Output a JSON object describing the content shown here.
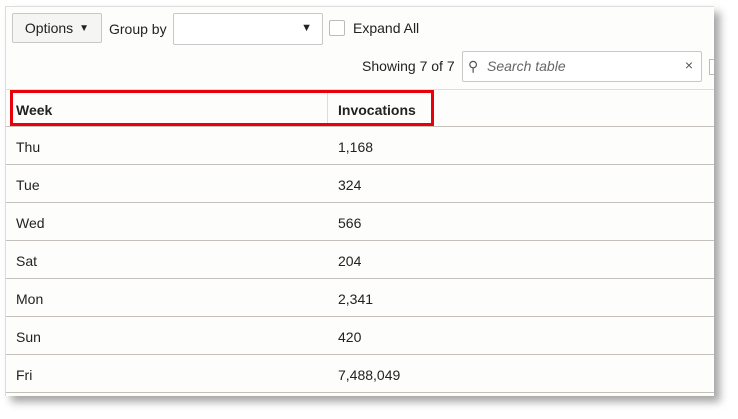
{
  "toolbar": {
    "options_label": "Options",
    "group_by_label": "Group by",
    "group_by_value": "",
    "expand_all_label": "Expand All",
    "showing": "Showing 7 of 7",
    "search_placeholder": "Search table",
    "clear_icon": "×"
  },
  "table": {
    "columns": [
      "Week",
      "Invocations"
    ],
    "rows": [
      [
        "Thu",
        "1,168"
      ],
      [
        "Tue",
        "324"
      ],
      [
        "Wed",
        "566"
      ],
      [
        "Sat",
        "204"
      ],
      [
        "Mon",
        "2,341"
      ],
      [
        "Sun",
        "420"
      ],
      [
        "Fri",
        "7,488,049"
      ]
    ]
  },
  "highlight_color": "#e8000b"
}
